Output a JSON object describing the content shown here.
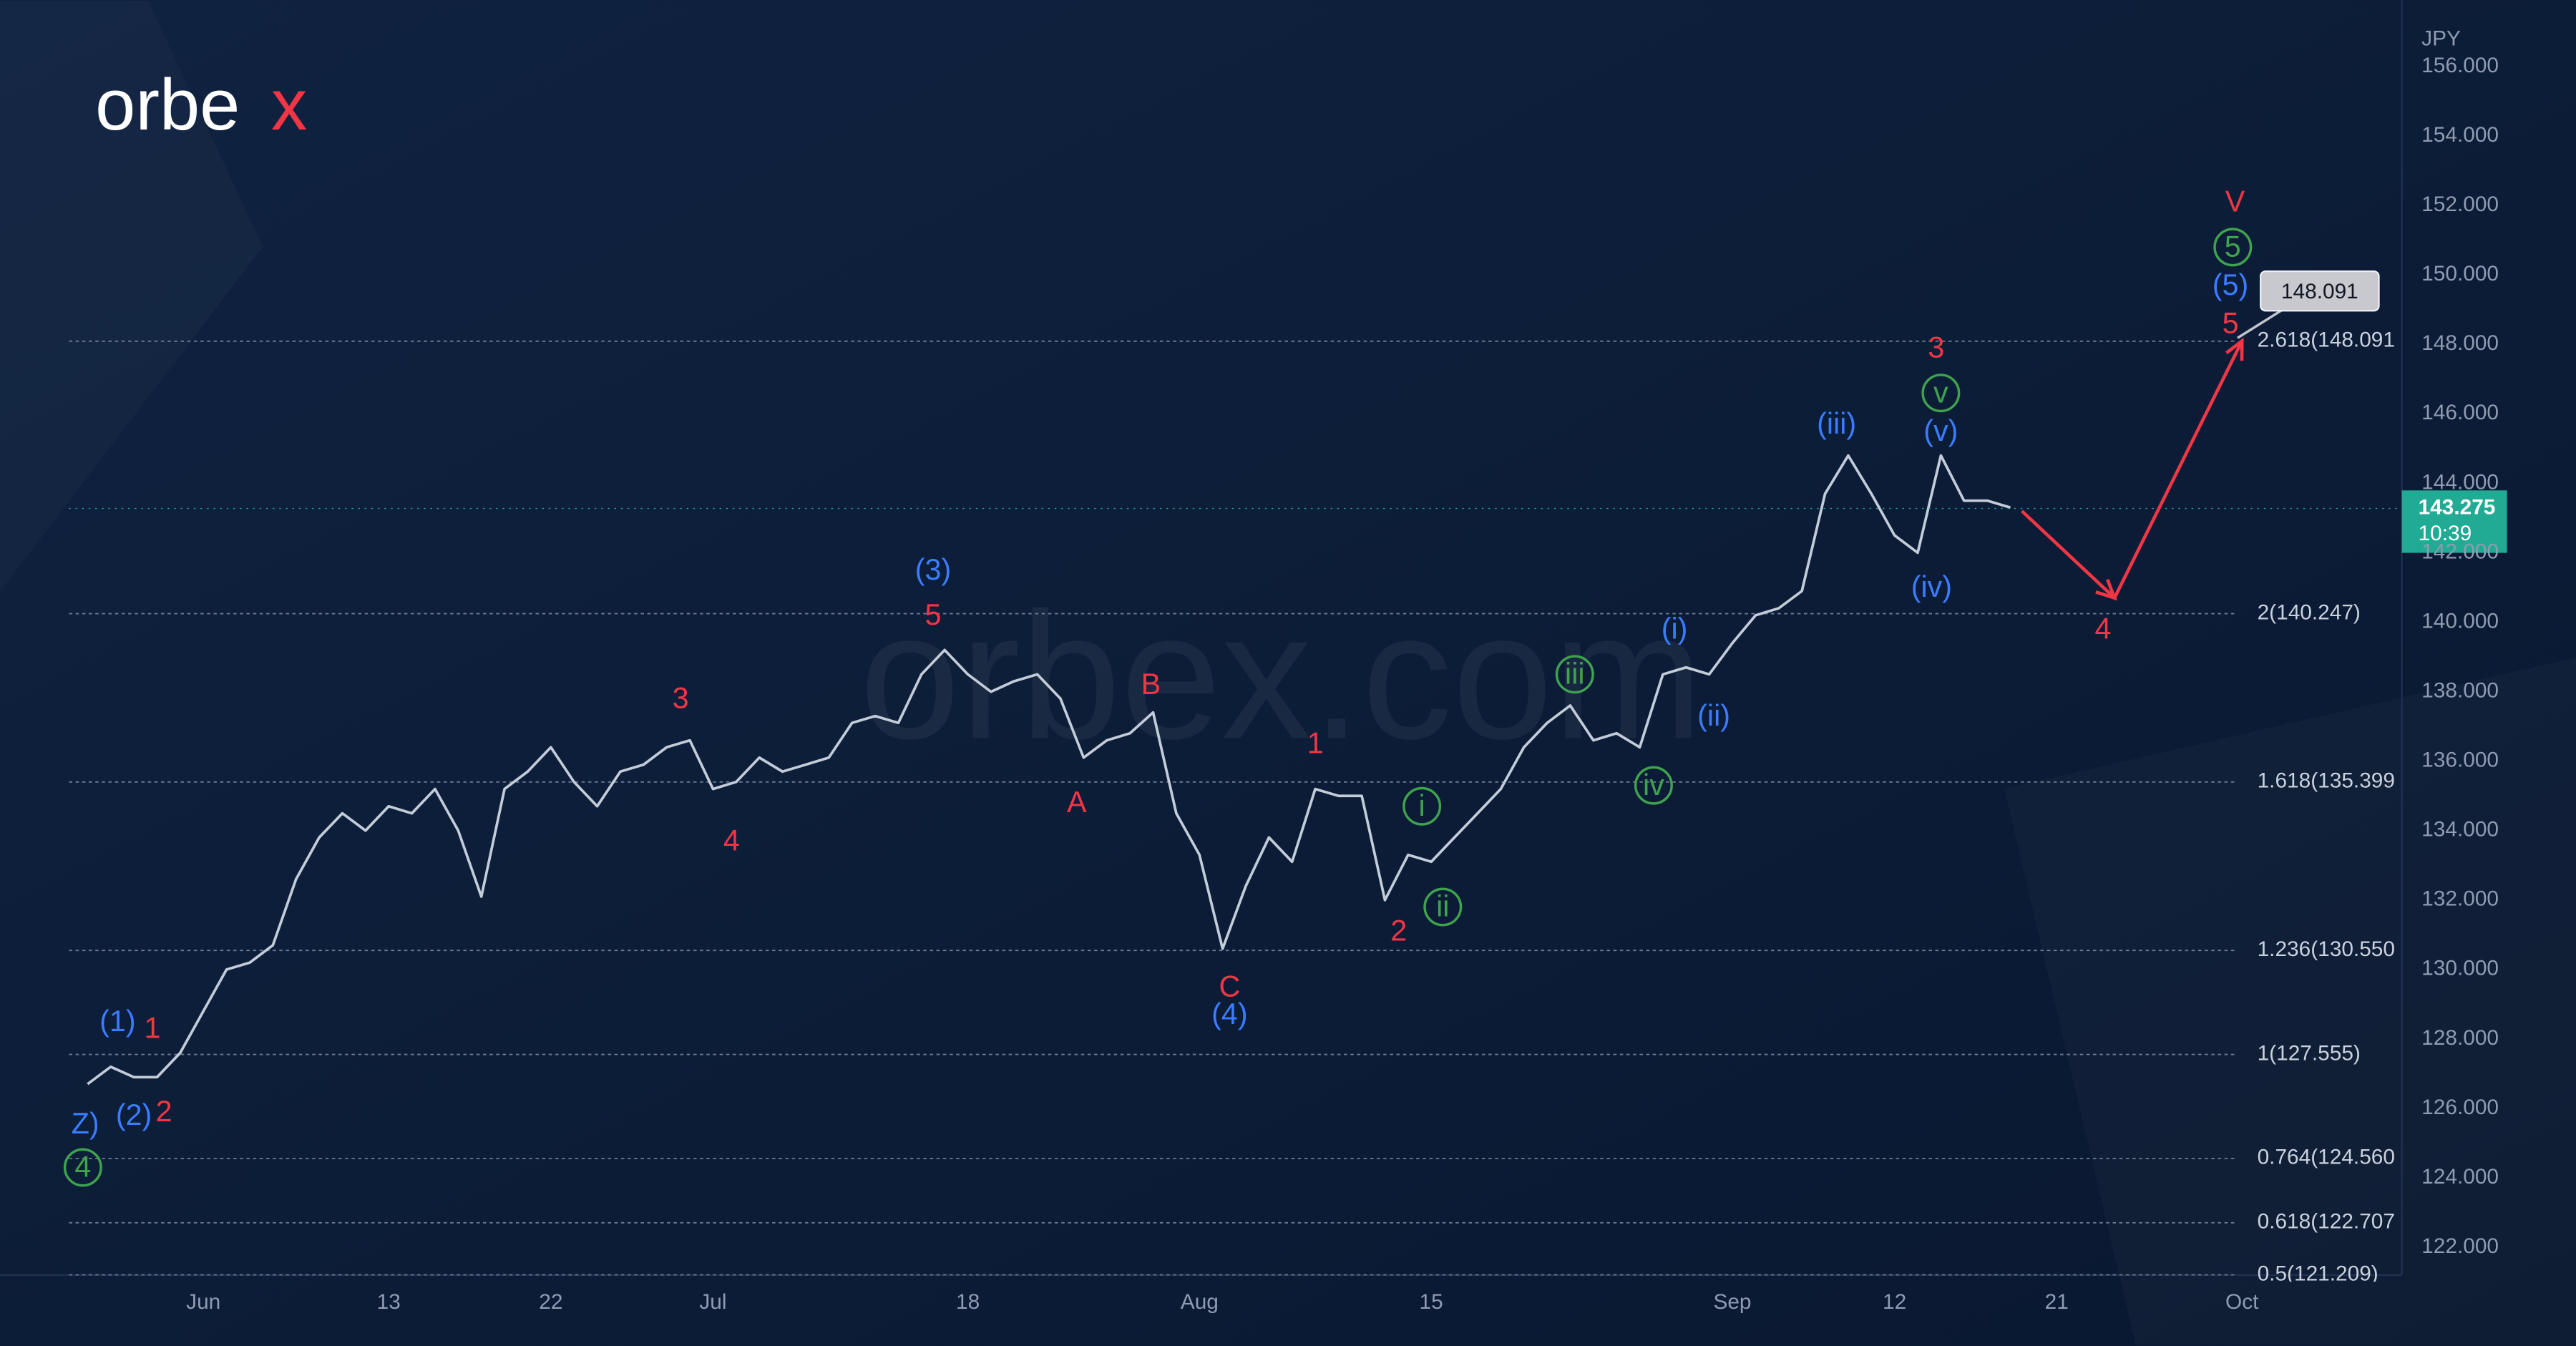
{
  "chart_data": {
    "type": "line",
    "axis_label": "JPY",
    "logo_text": "orbe",
    "logo_accent": "x",
    "watermark": "orbex.com",
    "color": "#c3ccd9",
    "x": [
      -5,
      -4,
      -3,
      -2,
      -1,
      0,
      1,
      2,
      3,
      4,
      5,
      6,
      7,
      8,
      9,
      10,
      11,
      12,
      13,
      14,
      15,
      16,
      17,
      18,
      19,
      20,
      21,
      22,
      23,
      24,
      25,
      26,
      27,
      28,
      29,
      30,
      31,
      32,
      33,
      34,
      35,
      36,
      37,
      38,
      39,
      40,
      41,
      42,
      43,
      44,
      45,
      46,
      47,
      48,
      49,
      50,
      51,
      52,
      53,
      54,
      55,
      56,
      57,
      58,
      59,
      60,
      61,
      62,
      63,
      64,
      65,
      66,
      67,
      68,
      69,
      70,
      71,
      72,
      73,
      74,
      75,
      76,
      77,
      78
    ],
    "values": [
      126.7,
      127.2,
      126.9,
      126.9,
      127.6,
      128.8,
      130.0,
      130.2,
      130.7,
      132.6,
      133.8,
      134.5,
      134.0,
      134.7,
      134.5,
      135.2,
      134.0,
      132.1,
      135.2,
      135.7,
      136.4,
      135.4,
      134.7,
      135.7,
      135.9,
      136.4,
      136.6,
      135.2,
      135.4,
      136.1,
      135.7,
      135.9,
      136.1,
      137.1,
      137.3,
      137.1,
      138.5,
      139.2,
      138.5,
      138.0,
      138.3,
      138.5,
      137.8,
      136.1,
      136.6,
      136.8,
      137.4,
      134.5,
      133.3,
      130.6,
      132.4,
      133.8,
      133.1,
      135.2,
      135.0,
      135.0,
      132.0,
      133.3,
      133.1,
      133.8,
      134.5,
      135.2,
      136.4,
      137.1,
      137.6,
      136.6,
      136.8,
      136.4,
      138.5,
      138.7,
      138.5,
      139.4,
      140.2,
      140.4,
      140.9,
      143.7,
      144.8,
      143.7,
      142.5,
      142.0,
      144.8,
      143.5,
      143.5,
      143.3
    ],
    "xlim": [
      -5.8,
      94.9
    ],
    "ylim": [
      121.2,
      157.2
    ],
    "xticks": [
      {
        "value": 0,
        "label": "Jun"
      },
      {
        "value": 8,
        "label": "13"
      },
      {
        "value": 15,
        "label": "22"
      },
      {
        "value": 22,
        "label": "Jul"
      },
      {
        "value": 33,
        "label": "18"
      },
      {
        "value": 43,
        "label": "Aug"
      },
      {
        "value": 53,
        "label": "15"
      },
      {
        "value": 66,
        "label": "Sep"
      },
      {
        "value": 73,
        "label": "12"
      },
      {
        "value": 80,
        "label": "21"
      },
      {
        "value": 88,
        "label": "Oct"
      }
    ],
    "yticks": [
      {
        "value": 122,
        "label": "122.000"
      },
      {
        "value": 124,
        "label": "124.000"
      },
      {
        "value": 126,
        "label": "126.000"
      },
      {
        "value": 128,
        "label": "128.000"
      },
      {
        "value": 130,
        "label": "130.000"
      },
      {
        "value": 132,
        "label": "132.000"
      },
      {
        "value": 134,
        "label": "134.000"
      },
      {
        "value": 136,
        "label": "136.000"
      },
      {
        "value": 138,
        "label": "138.000"
      },
      {
        "value": 140,
        "label": "140.000"
      },
      {
        "value": 142,
        "label": "142.000"
      },
      {
        "value": 144,
        "label": "144.000"
      },
      {
        "value": 146,
        "label": "146.000"
      },
      {
        "value": 148,
        "label": "148.000"
      },
      {
        "value": 150,
        "label": "150.000"
      },
      {
        "value": 152,
        "label": "152.000"
      },
      {
        "value": 154,
        "label": "154.000"
      },
      {
        "value": 156,
        "label": "156.000"
      }
    ],
    "grid": false,
    "fib_levels": [
      {
        "value": 148.091,
        "label": "2.618(148.091"
      },
      {
        "value": 140.247,
        "label": "2(140.247)"
      },
      {
        "value": 135.399,
        "label": "1.618(135.399"
      },
      {
        "value": 130.55,
        "label": "1.236(130.550"
      },
      {
        "value": 127.555,
        "label": "1(127.555)"
      },
      {
        "value": 124.56,
        "label": "0.764(124.560"
      },
      {
        "value": 122.707,
        "label": "0.618(122.707"
      },
      {
        "value": 121.209,
        "label": "0.5(121.209)"
      }
    ],
    "last_price": 143.275,
    "countdown": "10:39",
    "target": 148.091,
    "projection": {
      "color": "#f23645",
      "x": [
        78.5,
        82.5,
        88.0
      ],
      "y": [
        143.2,
        140.7,
        148.1
      ]
    },
    "annotations": [
      {
        "text": "Z)",
        "color": "#3b7cff",
        "x": -5.1,
        "y": 125.55,
        "circle": false
      },
      {
        "text": "4",
        "color": "#3fa34d",
        "x": -5.2,
        "y": 124.3,
        "circle": true
      },
      {
        "text": "(1)",
        "color": "#3b7cff",
        "x": -3.7,
        "y": 128.5,
        "circle": false
      },
      {
        "text": "1",
        "color": "#f23645",
        "x": -2.2,
        "y": 128.3,
        "circle": false
      },
      {
        "text": "(2)",
        "color": "#3b7cff",
        "x": -3.0,
        "y": 125.8,
        "circle": false
      },
      {
        "text": "2",
        "color": "#f23645",
        "x": -1.7,
        "y": 125.9,
        "circle": false
      },
      {
        "text": "3",
        "color": "#f23645",
        "x": 20.6,
        "y": 137.8,
        "circle": false
      },
      {
        "text": "4",
        "color": "#f23645",
        "x": 22.8,
        "y": 133.7,
        "circle": false
      },
      {
        "text": "(3)",
        "color": "#3b7cff",
        "x": 31.5,
        "y": 141.5,
        "circle": false
      },
      {
        "text": "5",
        "color": "#f23645",
        "x": 31.5,
        "y": 140.2,
        "circle": false
      },
      {
        "text": "B",
        "color": "#f23645",
        "x": 40.9,
        "y": 138.2,
        "circle": false
      },
      {
        "text": "A",
        "color": "#f23645",
        "x": 37.7,
        "y": 134.8,
        "circle": false
      },
      {
        "text": "C",
        "color": "#f23645",
        "x": 44.3,
        "y": 129.5,
        "circle": false
      },
      {
        "text": "(4)",
        "color": "#3b7cff",
        "x": 44.3,
        "y": 128.7,
        "circle": false
      },
      {
        "text": "1",
        "color": "#f23645",
        "x": 48.0,
        "y": 136.5,
        "circle": false
      },
      {
        "text": "2",
        "color": "#f23645",
        "x": 51.6,
        "y": 131.1,
        "circle": false
      },
      {
        "text": "i",
        "color": "#3fa34d",
        "x": 52.6,
        "y": 134.7,
        "circle": true
      },
      {
        "text": "ii",
        "color": "#3fa34d",
        "x": 53.5,
        "y": 131.8,
        "circle": true
      },
      {
        "text": "iii",
        "color": "#3fa34d",
        "x": 59.2,
        "y": 138.5,
        "circle": true
      },
      {
        "text": "iv",
        "color": "#3fa34d",
        "x": 62.6,
        "y": 135.3,
        "circle": true
      },
      {
        "text": "(i)",
        "color": "#3b7cff",
        "x": 63.5,
        "y": 139.8,
        "circle": false
      },
      {
        "text": "(ii)",
        "color": "#3b7cff",
        "x": 65.2,
        "y": 137.3,
        "circle": false
      },
      {
        "text": "(iii)",
        "color": "#3b7cff",
        "x": 70.5,
        "y": 145.7,
        "circle": false
      },
      {
        "text": "(iv)",
        "color": "#3b7cff",
        "x": 74.6,
        "y": 141.0,
        "circle": false
      },
      {
        "text": "(v)",
        "color": "#3b7cff",
        "x": 75.0,
        "y": 145.5,
        "circle": false
      },
      {
        "text": "v",
        "color": "#3fa34d",
        "x": 75.0,
        "y": 146.6,
        "circle": true
      },
      {
        "text": "3",
        "color": "#f23645",
        "x": 74.8,
        "y": 147.9,
        "circle": false
      },
      {
        "text": "4",
        "color": "#f23645",
        "x": 82.0,
        "y": 139.8,
        "circle": false
      },
      {
        "text": "5",
        "color": "#f23645",
        "x": 87.5,
        "y": 148.6,
        "circle": false
      },
      {
        "text": "(5)",
        "color": "#3b7cff",
        "x": 87.5,
        "y": 149.7,
        "circle": false
      },
      {
        "text": "5",
        "color": "#3fa34d",
        "x": 87.6,
        "y": 150.8,
        "circle": true
      },
      {
        "text": "V",
        "color": "#f23645",
        "x": 87.7,
        "y": 152.1,
        "circle": false
      }
    ]
  }
}
